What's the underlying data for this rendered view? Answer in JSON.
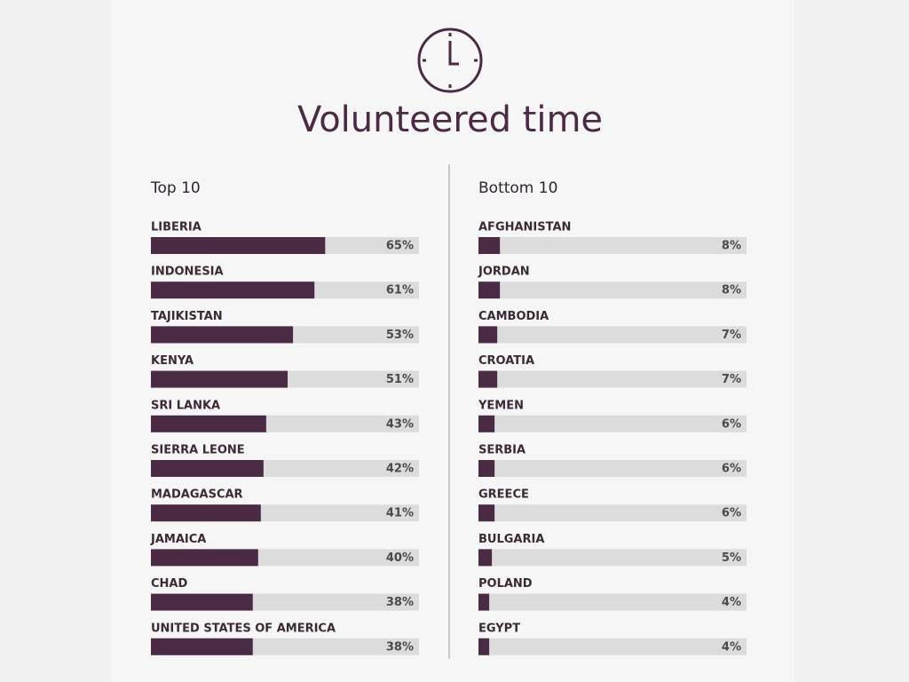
{
  "title": "Volunteered time",
  "chart_data": [
    {
      "type": "bar",
      "orientation": "horizontal",
      "title": "Top 10",
      "categories": [
        "LIBERIA",
        "INDONESIA",
        "TAJIKISTAN",
        "KENYA",
        "SRI LANKA",
        "SIERRA LEONE",
        "MADAGASCAR",
        "JAMAICA",
        "CHAD",
        "UNITED STATES OF AMERICA"
      ],
      "values": [
        65,
        61,
        53,
        51,
        43,
        42,
        41,
        40,
        38,
        38
      ],
      "value_labels": [
        "65%",
        "61%",
        "53%",
        "51%",
        "43%",
        "42%",
        "41%",
        "40%",
        "38%",
        "38%"
      ],
      "xlim": [
        0,
        100
      ],
      "color": "#4b2a44",
      "track_color": "#dcdcdc"
    },
    {
      "type": "bar",
      "orientation": "horizontal",
      "title": "Bottom 10",
      "categories": [
        "AFGHANISTAN",
        "JORDAN",
        "CAMBODIA",
        "CROATIA",
        "YEMEN",
        "SERBIA",
        "GREECE",
        "BULGARIA",
        "POLAND",
        "EGYPT"
      ],
      "values": [
        8,
        8,
        7,
        7,
        6,
        6,
        6,
        5,
        4,
        4
      ],
      "value_labels": [
        "8%",
        "8%",
        "7%",
        "7%",
        "6%",
        "6%",
        "6%",
        "5%",
        "4%",
        "4%"
      ],
      "xlim": [
        0,
        100
      ],
      "color": "#4b2a44",
      "track_color": "#dcdcdc"
    }
  ]
}
